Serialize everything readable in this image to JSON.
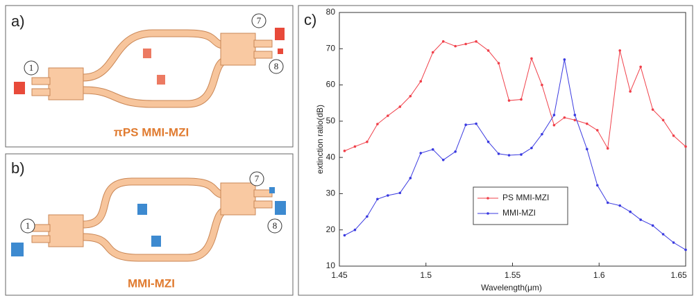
{
  "panels": [
    {
      "label": "a)",
      "title": "πPS MMI-MZI",
      "ports": [
        "1",
        "7",
        "8"
      ]
    },
    {
      "label": "b)",
      "title": "MMI-MZI",
      "ports": [
        "1",
        "7",
        "8"
      ]
    }
  ],
  "chart_data": {
    "type": "line",
    "panel_label": "c)",
    "xlabel": "Wavelength(μm)",
    "ylabel": "extinction ratio(dB)",
    "x": [
      1.453,
      1.459,
      1.466,
      1.472,
      1.478,
      1.485,
      1.491,
      1.497,
      1.504,
      1.51,
      1.517,
      1.523,
      1.529,
      1.536,
      1.542,
      1.548,
      1.555,
      1.561,
      1.567,
      1.574,
      1.58,
      1.586,
      1.593,
      1.599,
      1.605,
      1.612,
      1.618,
      1.624,
      1.631,
      1.637,
      1.643,
      1.65
    ],
    "series": [
      {
        "name": "PS MMI-MZI",
        "color": "#f0404a",
        "values": [
          41.8,
          43,
          44.3,
          49.2,
          51.5,
          54,
          56.9,
          61,
          69,
          72,
          70.7,
          71.3,
          72,
          69.5,
          66,
          55.7,
          56,
          67.3,
          60,
          48.9,
          51,
          50.3,
          49.3,
          47.5,
          42.5,
          69.5,
          58.2,
          65,
          53.2,
          50.3,
          46,
          43
        ]
      },
      {
        "name": "MMI-MZI",
        "color": "#3a3ae0",
        "values": [
          18.5,
          20,
          23.7,
          28.5,
          29.5,
          30.2,
          34.3,
          41.2,
          42.2,
          39.3,
          41.6,
          49,
          49.3,
          44.3,
          41,
          40.6,
          40.8,
          42.6,
          46.4,
          51.7,
          67,
          51.7,
          42.3,
          32.3,
          27.5,
          26.7,
          25,
          22.8,
          21.2,
          18.8,
          16.5,
          14.5
        ]
      }
    ],
    "xlim": [
      1.45,
      1.65
    ],
    "xticks": [
      1.45,
      1.5,
      1.55,
      1.6,
      1.65
    ],
    "ylim": [
      10,
      80
    ],
    "yticks": [
      10,
      20,
      30,
      40,
      50,
      60,
      70,
      80
    ],
    "legend": "center"
  }
}
